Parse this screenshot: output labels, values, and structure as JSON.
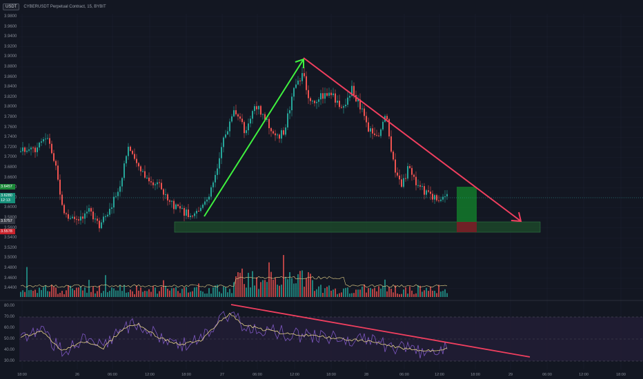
{
  "header": {
    "symbol_badge": "USDT",
    "title": "CYBERUSDT Perpetual Contract, 15, BYBIT"
  },
  "price_axis": [
    "3.9800",
    "3.9600",
    "3.9400",
    "3.9200",
    "3.9000",
    "3.8800",
    "3.8600",
    "3.8400",
    "3.8200",
    "3.8000",
    "3.7800",
    "3.7600",
    "3.7400",
    "3.7200",
    "3.7000",
    "3.6800",
    "3.6600",
    "3.6400",
    "3.6200",
    "3.6000",
    "3.5800",
    "3.5600",
    "3.5400",
    "3.5200",
    "3.5000",
    "3.4800",
    "3.4600",
    "3.4400"
  ],
  "rsi_axis": [
    "80.00",
    "70.00",
    "60.00",
    "50.00",
    "40.00",
    "30.00"
  ],
  "time_axis": [
    "18:00",
    "26",
    "06:00",
    "12:00",
    "18:00",
    "27",
    "06:00",
    "12:00",
    "18:00",
    "28",
    "06:00",
    "12:00",
    "18:00",
    "29",
    "06:00",
    "12:00",
    "18:00"
  ],
  "price_tags": {
    "upper": "3.6457",
    "current": "3.6280",
    "countdown": "12:13",
    "support": "3.5757",
    "lower": "3.5578"
  },
  "colors": {
    "background": "#131722",
    "bull": "#26a69a",
    "bear": "#ef5350",
    "arrow_up": "#3ff23f",
    "arrow_down": "#f23f5f",
    "support_zone": "#1e4d2b",
    "rsi_line": "#7e57c2",
    "rsi_ma": "#e8d48a",
    "rsi_band": "#221d35"
  }
}
